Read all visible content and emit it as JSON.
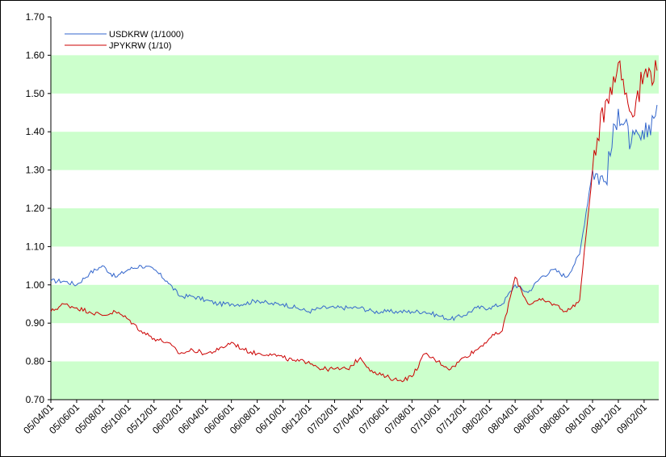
{
  "chart_data": {
    "type": "line",
    "ylim": [
      0.7,
      1.7
    ],
    "y_ticks": [
      "0.70",
      "0.80",
      "0.90",
      "1.00",
      "1.10",
      "1.20",
      "1.30",
      "1.40",
      "1.50",
      "1.60",
      "1.70"
    ],
    "x_ticks": [
      "05/04/01",
      "05/06/01",
      "05/08/01",
      "05/10/01",
      "05/12/01",
      "06/02/01",
      "06/04/01",
      "06/06/01",
      "06/08/01",
      "06/10/01",
      "06/12/01",
      "07/02/01",
      "07/04/01",
      "07/06/01",
      "07/08/01",
      "07/10/01",
      "07/12/01",
      "08/02/01",
      "08/04/01",
      "08/06/01",
      "08/08/01",
      "08/10/01",
      "08/12/01",
      "09/02/01"
    ],
    "grid": "alternating green bands",
    "band_color": "#ccffcc",
    "legend_position": "top-left",
    "series": [
      {
        "name": "USDKRW (1/1000)",
        "color": "#3366cc",
        "x": [
          "05/04/01",
          "05/05/01",
          "05/06/01",
          "05/07/01",
          "05/08/01",
          "05/09/01",
          "05/10/01",
          "05/11/01",
          "05/12/01",
          "06/01/01",
          "06/02/01",
          "06/03/01",
          "06/04/01",
          "06/05/01",
          "06/06/01",
          "06/07/01",
          "06/08/01",
          "06/09/01",
          "06/10/01",
          "06/11/01",
          "06/12/01",
          "07/01/01",
          "07/02/01",
          "07/03/01",
          "07/04/01",
          "07/05/01",
          "07/06/01",
          "07/07/01",
          "07/08/01",
          "07/09/01",
          "07/10/01",
          "07/11/01",
          "07/12/01",
          "08/01/01",
          "08/02/01",
          "08/03/01",
          "08/04/01",
          "08/05/01",
          "08/06/01",
          "08/07/01",
          "08/08/01",
          "08/09/01",
          "08/10/01",
          "08/11/01",
          "08/12/01",
          "09/01/01",
          "09/02/01",
          "09/03/01"
        ],
        "values": [
          1.01,
          1.01,
          1.0,
          1.03,
          1.05,
          1.02,
          1.04,
          1.05,
          1.04,
          1.01,
          0.97,
          0.97,
          0.96,
          0.95,
          0.95,
          0.95,
          0.96,
          0.95,
          0.95,
          0.94,
          0.93,
          0.94,
          0.94,
          0.94,
          0.94,
          0.93,
          0.93,
          0.93,
          0.93,
          0.93,
          0.92,
          0.91,
          0.92,
          0.94,
          0.94,
          0.95,
          1.0,
          0.98,
          1.02,
          1.04,
          1.02,
          1.08,
          1.3,
          1.27,
          1.46,
          1.37,
          1.38,
          1.47
        ]
      },
      {
        "name": "JPYKRW (1/10)",
        "color": "#cc0000",
        "x": [
          "05/04/01",
          "05/05/01",
          "05/06/01",
          "05/07/01",
          "05/08/01",
          "05/09/01",
          "05/10/01",
          "05/11/01",
          "05/12/01",
          "06/01/01",
          "06/02/01",
          "06/03/01",
          "06/04/01",
          "06/05/01",
          "06/06/01",
          "06/07/01",
          "06/08/01",
          "06/09/01",
          "06/10/01",
          "06/11/01",
          "06/12/01",
          "07/01/01",
          "07/02/01",
          "07/03/01",
          "07/04/01",
          "07/05/01",
          "07/06/01",
          "07/07/01",
          "07/08/01",
          "07/09/01",
          "07/10/01",
          "07/11/01",
          "07/12/01",
          "08/01/01",
          "08/02/01",
          "08/03/01",
          "08/04/01",
          "08/05/01",
          "08/06/01",
          "08/07/01",
          "08/08/01",
          "08/09/01",
          "08/10/01",
          "08/11/01",
          "08/12/01",
          "09/01/01",
          "09/02/01",
          "09/03/01"
        ],
        "values": [
          0.93,
          0.95,
          0.94,
          0.93,
          0.92,
          0.93,
          0.91,
          0.88,
          0.86,
          0.85,
          0.82,
          0.83,
          0.82,
          0.83,
          0.85,
          0.83,
          0.82,
          0.82,
          0.81,
          0.8,
          0.8,
          0.78,
          0.78,
          0.78,
          0.81,
          0.77,
          0.76,
          0.75,
          0.76,
          0.82,
          0.8,
          0.78,
          0.81,
          0.83,
          0.86,
          0.88,
          1.02,
          0.95,
          0.96,
          0.95,
          0.93,
          0.96,
          1.3,
          1.48,
          1.58,
          1.45,
          1.55,
          1.56
        ]
      }
    ]
  }
}
